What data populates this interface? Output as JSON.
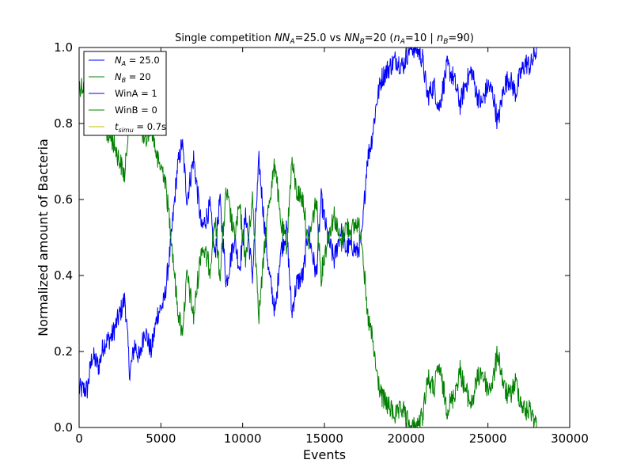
{
  "chart_data": {
    "type": "line",
    "title": "Single competition NN_A=25.0 vs NN_B=20 (n_A=10 | n_B=90)",
    "title_parts": {
      "p1": "Single competition ",
      "p2": "NN",
      "p3": "A",
      "p4": "=25.0 vs ",
      "p5": "NN",
      "p6": "B",
      "p7": "=20 (",
      "p8": "n",
      "p9": "A",
      "p10": "=10 | ",
      "p11": "n",
      "p12": "B",
      "p13": "=90)"
    },
    "xlabel": "Events",
    "ylabel": "Normalized amount of Bacteria",
    "xlim": [
      0,
      30000
    ],
    "ylim": [
      0.0,
      1.0
    ],
    "xticks": [
      0,
      5000,
      10000,
      15000,
      20000,
      25000,
      30000
    ],
    "xtick_labels": [
      "0",
      "5000",
      "10000",
      "15000",
      "20000",
      "25000",
      "30000"
    ],
    "yticks": [
      0.0,
      0.2,
      0.4,
      0.6,
      0.8,
      1.0
    ],
    "ytick_labels": [
      "0.0",
      "0.2",
      "0.4",
      "0.6",
      "0.8",
      "1.0"
    ],
    "grid": false,
    "legend_position": "top-left",
    "legend": [
      {
        "sym": "N",
        "sub": "A",
        "rest": " = 25.0",
        "color": "#0000ff"
      },
      {
        "sym": "N",
        "sub": "B",
        "rest": " = 20",
        "color": "#008000"
      },
      {
        "sym": "",
        "sub": "",
        "rest": "WinA = 1",
        "color": "#0000ff"
      },
      {
        "sym": "",
        "sub": "",
        "rest": "WinB = 0",
        "color": "#008000"
      },
      {
        "sym": "t",
        "sub": "simu",
        "rest": " = 0.7s",
        "color": "#bfbf00"
      }
    ],
    "series": [
      {
        "color": "#0000ff",
        "x": [
          0,
          500,
          800,
          1200,
          1500,
          2000,
          2500,
          2800,
          3100,
          3400,
          3700,
          4000,
          4400,
          4800,
          5200,
          5600,
          6000,
          6300,
          6600,
          7000,
          7500,
          8000,
          8300,
          8600,
          9000,
          9500,
          9800,
          10200,
          10600,
          11000,
          11300,
          11600,
          12000,
          12300,
          12700,
          13000,
          13300,
          13700,
          14000,
          14500,
          14800,
          15200,
          15600,
          16000,
          16300,
          16700,
          17000,
          17300,
          17600,
          17900,
          18200,
          18500,
          19000,
          19400,
          19800,
          20200,
          20600,
          21000,
          21300,
          21700,
          22000,
          22500,
          22900,
          23300,
          23600,
          24000,
          24300,
          24600,
          25000,
          25300,
          25600,
          26000,
          26300,
          26700,
          27000,
          27300,
          27600,
          28000
        ],
        "y": [
          0.1,
          0.1,
          0.19,
          0.16,
          0.22,
          0.24,
          0.3,
          0.34,
          0.14,
          0.22,
          0.18,
          0.26,
          0.2,
          0.3,
          0.33,
          0.48,
          0.68,
          0.75,
          0.6,
          0.71,
          0.52,
          0.58,
          0.45,
          0.6,
          0.38,
          0.5,
          0.42,
          0.56,
          0.4,
          0.7,
          0.55,
          0.41,
          0.3,
          0.46,
          0.52,
          0.3,
          0.38,
          0.4,
          0.52,
          0.4,
          0.6,
          0.5,
          0.44,
          0.52,
          0.47,
          0.48,
          0.46,
          0.5,
          0.7,
          0.76,
          0.86,
          0.92,
          0.95,
          0.97,
          0.95,
          1.0,
          1.0,
          0.97,
          0.87,
          0.9,
          0.84,
          0.95,
          0.92,
          0.85,
          0.9,
          0.94,
          0.88,
          0.85,
          0.9,
          0.88,
          0.8,
          0.9,
          0.92,
          0.88,
          0.93,
          0.96,
          0.95,
          1.0
        ]
      },
      {
        "color": "#008000",
        "x": [
          0,
          500,
          800,
          1200,
          1500,
          2000,
          2500,
          2800,
          3100,
          3400,
          3700,
          4000,
          4400,
          4800,
          5200,
          5600,
          6000,
          6300,
          6600,
          7000,
          7500,
          8000,
          8300,
          8600,
          9000,
          9500,
          9800,
          10200,
          10600,
          11000,
          11300,
          11600,
          12000,
          12300,
          12700,
          13000,
          13300,
          13700,
          14000,
          14500,
          14800,
          15200,
          15600,
          16000,
          16300,
          16700,
          17000,
          17300,
          17600,
          17900,
          18200,
          18500,
          19000,
          19400,
          19800,
          20200,
          20600,
          21000,
          21300,
          21700,
          22000,
          22500,
          22900,
          23300,
          23600,
          24000,
          24300,
          24600,
          25000,
          25300,
          25600,
          26000,
          26300,
          26700,
          27000,
          27300,
          27600,
          28000
        ],
        "y": [
          0.9,
          0.9,
          0.81,
          0.84,
          0.78,
          0.76,
          0.7,
          0.66,
          0.86,
          0.78,
          0.82,
          0.74,
          0.8,
          0.7,
          0.67,
          0.52,
          0.32,
          0.25,
          0.4,
          0.29,
          0.48,
          0.42,
          0.55,
          0.4,
          0.62,
          0.5,
          0.58,
          0.44,
          0.6,
          0.3,
          0.45,
          0.59,
          0.7,
          0.54,
          0.48,
          0.7,
          0.62,
          0.6,
          0.48,
          0.6,
          0.4,
          0.5,
          0.56,
          0.48,
          0.53,
          0.52,
          0.54,
          0.5,
          0.3,
          0.24,
          0.14,
          0.08,
          0.05,
          0.03,
          0.05,
          0.0,
          0.0,
          0.03,
          0.13,
          0.1,
          0.16,
          0.05,
          0.08,
          0.15,
          0.1,
          0.06,
          0.12,
          0.15,
          0.1,
          0.12,
          0.2,
          0.1,
          0.08,
          0.12,
          0.07,
          0.04,
          0.05,
          0.0
        ]
      }
    ]
  }
}
